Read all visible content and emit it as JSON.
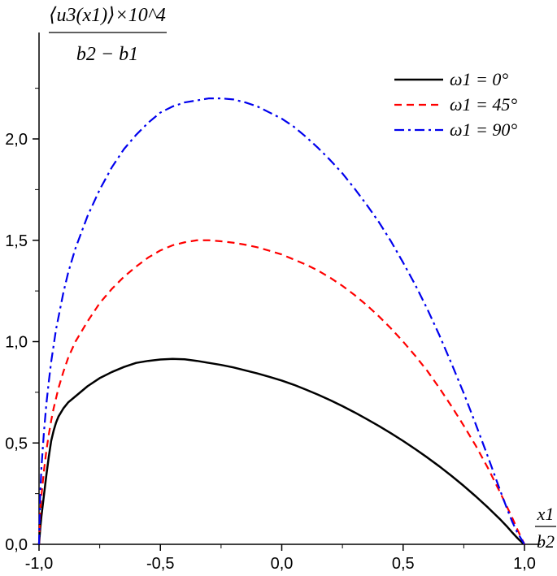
{
  "chart_data": {
    "type": "line",
    "title": "",
    "ylabel": {
      "numerator": "⟨u3(x1)⟩×10^4",
      "denominator": "b2 − b1"
    },
    "xlabel": {
      "numerator": "x1",
      "denominator": "b2"
    },
    "xlim": [
      -1.0,
      1.0
    ],
    "ylim": [
      0.0,
      2.3
    ],
    "x_ticks": [
      -1.0,
      -0.5,
      0.0,
      0.5,
      1.0
    ],
    "x_tick_labels": [
      "-1,0",
      "-0,5",
      "0,0",
      "0,5",
      "1,0"
    ],
    "y_ticks": [
      0.0,
      0.5,
      1.0,
      1.5,
      2.0
    ],
    "y_tick_labels": [
      "0,0",
      "0,5",
      "1,0",
      "1,5",
      "2,0"
    ],
    "grid": false,
    "legend_position": "top-right",
    "series": [
      {
        "name": "ω1 = 0°",
        "color": "#000000",
        "style": "solid",
        "x": [
          -1.0,
          -0.995,
          -0.99,
          -0.98,
          -0.97,
          -0.96,
          -0.95,
          -0.94,
          -0.93,
          -0.92,
          -0.9,
          -0.88,
          -0.85,
          -0.8,
          -0.75,
          -0.7,
          -0.65,
          -0.6,
          -0.55,
          -0.5,
          -0.45,
          -0.4,
          -0.35,
          -0.3,
          -0.25,
          -0.2,
          -0.15,
          -0.1,
          -0.05,
          0.0,
          0.05,
          0.1,
          0.15,
          0.2,
          0.25,
          0.3,
          0.35,
          0.4,
          0.45,
          0.5,
          0.55,
          0.6,
          0.65,
          0.7,
          0.75,
          0.8,
          0.85,
          0.9,
          0.93,
          0.95,
          0.97,
          0.98,
          0.99,
          1.0
        ],
        "y": [
          0.0,
          0.08,
          0.14,
          0.24,
          0.34,
          0.43,
          0.51,
          0.56,
          0.6,
          0.63,
          0.67,
          0.7,
          0.73,
          0.78,
          0.82,
          0.85,
          0.875,
          0.895,
          0.905,
          0.912,
          0.915,
          0.913,
          0.905,
          0.895,
          0.885,
          0.873,
          0.858,
          0.843,
          0.826,
          0.808,
          0.787,
          0.763,
          0.738,
          0.711,
          0.682,
          0.651,
          0.618,
          0.584,
          0.548,
          0.51,
          0.47,
          0.428,
          0.384,
          0.337,
          0.288,
          0.236,
          0.181,
          0.123,
          0.085,
          0.058,
          0.032,
          0.02,
          0.009,
          0.0
        ]
      },
      {
        "name": "ω1 = 45°",
        "color": "#ff0000",
        "style": "dashed",
        "x": [
          -1.0,
          -0.995,
          -0.99,
          -0.98,
          -0.97,
          -0.96,
          -0.95,
          -0.94,
          -0.93,
          -0.92,
          -0.9,
          -0.88,
          -0.85,
          -0.8,
          -0.75,
          -0.7,
          -0.65,
          -0.6,
          -0.55,
          -0.5,
          -0.45,
          -0.4,
          -0.35,
          -0.3,
          -0.25,
          -0.2,
          -0.15,
          -0.1,
          -0.05,
          0.0,
          0.05,
          0.1,
          0.15,
          0.2,
          0.25,
          0.3,
          0.35,
          0.4,
          0.45,
          0.5,
          0.55,
          0.6,
          0.65,
          0.7,
          0.75,
          0.8,
          0.85,
          0.9,
          0.93,
          0.95,
          0.97,
          0.98,
          0.99,
          1.0
        ],
        "y": [
          0.0,
          0.16,
          0.24,
          0.36,
          0.46,
          0.54,
          0.61,
          0.67,
          0.72,
          0.77,
          0.85,
          0.92,
          1.0,
          1.1,
          1.19,
          1.26,
          1.32,
          1.37,
          1.415,
          1.45,
          1.475,
          1.49,
          1.5,
          1.5,
          1.495,
          1.488,
          1.478,
          1.465,
          1.448,
          1.43,
          1.405,
          1.38,
          1.35,
          1.315,
          1.275,
          1.23,
          1.18,
          1.125,
          1.065,
          1.0,
          0.93,
          0.855,
          0.77,
          0.68,
          0.585,
          0.485,
          0.375,
          0.255,
          0.18,
          0.13,
          0.075,
          0.05,
          0.025,
          0.0
        ]
      },
      {
        "name": "ω1 = 90°",
        "color": "#0000ee",
        "style": "dashdot",
        "x": [
          -1.0,
          -0.995,
          -0.99,
          -0.98,
          -0.97,
          -0.96,
          -0.95,
          -0.94,
          -0.93,
          -0.92,
          -0.9,
          -0.88,
          -0.85,
          -0.8,
          -0.75,
          -0.7,
          -0.65,
          -0.6,
          -0.55,
          -0.5,
          -0.45,
          -0.4,
          -0.35,
          -0.3,
          -0.25,
          -0.2,
          -0.15,
          -0.1,
          -0.05,
          0.0,
          0.05,
          0.1,
          0.15,
          0.2,
          0.25,
          0.3,
          0.35,
          0.4,
          0.45,
          0.5,
          0.55,
          0.6,
          0.65,
          0.7,
          0.75,
          0.8,
          0.85,
          0.9,
          0.93,
          0.95,
          0.97,
          0.98,
          0.99,
          1.0
        ],
        "y": [
          0.0,
          0.25,
          0.38,
          0.55,
          0.69,
          0.8,
          0.9,
          0.98,
          1.06,
          1.12,
          1.24,
          1.34,
          1.46,
          1.62,
          1.75,
          1.86,
          1.95,
          2.02,
          2.08,
          2.13,
          2.16,
          2.18,
          2.19,
          2.2,
          2.2,
          2.195,
          2.18,
          2.16,
          2.13,
          2.1,
          2.06,
          2.01,
          1.955,
          1.895,
          1.83,
          1.755,
          1.675,
          1.59,
          1.495,
          1.39,
          1.28,
          1.16,
          1.03,
          0.89,
          0.745,
          0.59,
          0.43,
          0.265,
          0.17,
          0.11,
          0.06,
          0.04,
          0.02,
          0.0
        ]
      }
    ]
  }
}
